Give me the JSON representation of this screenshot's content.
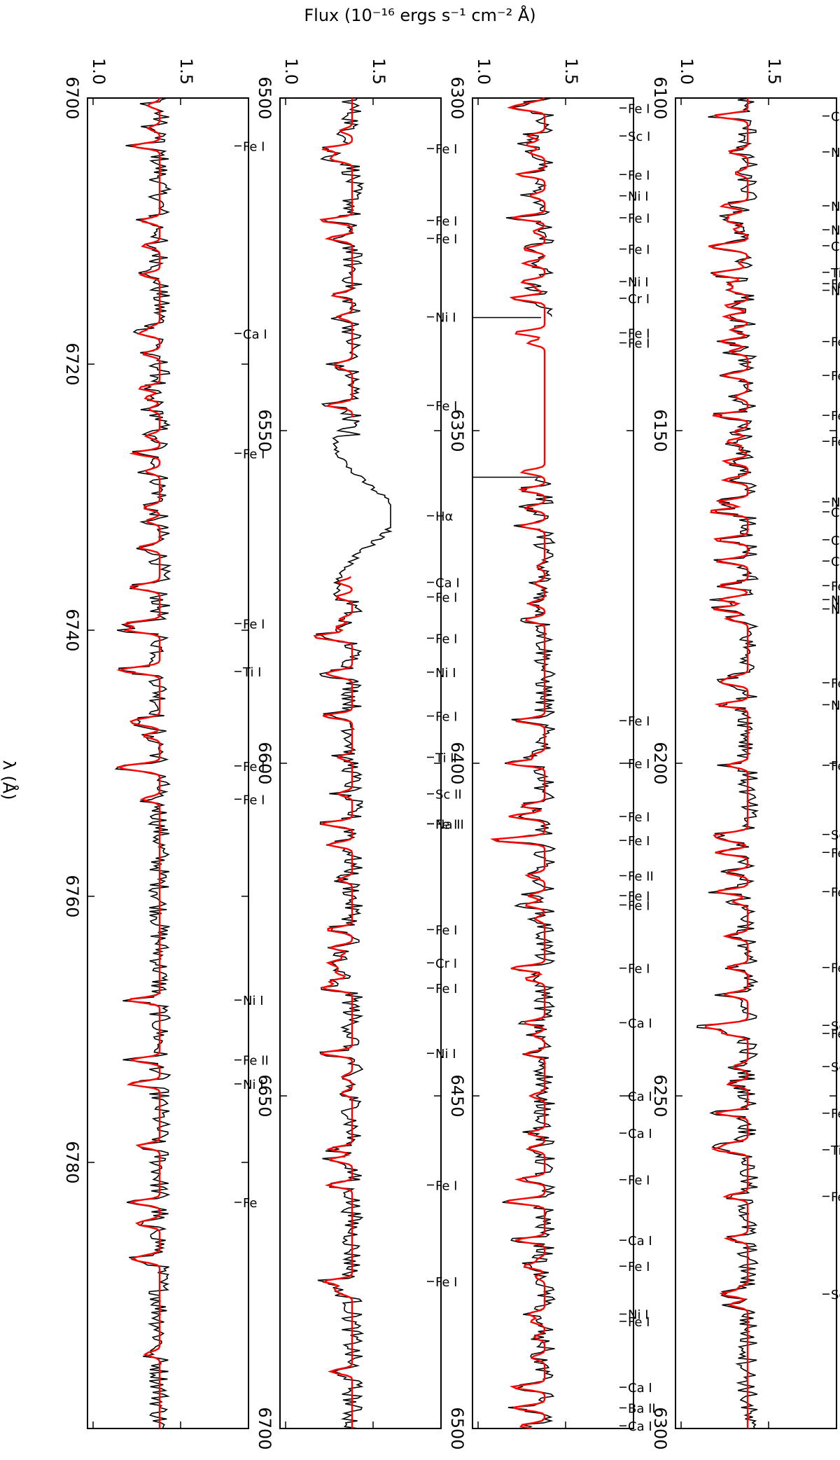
{
  "figure": {
    "ylabel_top": "Flux (10⁻¹⁶ ergs s⁻¹ cm⁻² Å)",
    "xlabel_side": "λ (Å)"
  },
  "chart_data": [
    {
      "type": "line",
      "panel": 1,
      "xlim": [
        6700,
        6800
      ],
      "ylim": [
        1.0,
        1.5
      ],
      "xticks": [
        "6700",
        "6720",
        "6740",
        "6760",
        "6780"
      ],
      "yticks": [
        "1.0",
        "1.5"
      ],
      "series": [
        {
          "name": "observed",
          "color": "#000000"
        },
        {
          "name": "model",
          "color": "#ff0000"
        }
      ],
      "lines": [
        {
          "w": 6703.6,
          "label": "Fe I"
        },
        {
          "w": 6717.7,
          "label": "Ca I"
        },
        {
          "w": 6726.7,
          "label": "Fe I"
        },
        {
          "w": 6739.5,
          "label": "Fe I"
        },
        {
          "w": 6743.1,
          "label": "Ti I"
        },
        {
          "w": 6750.2,
          "label": "Fe I"
        },
        {
          "w": 6752.7,
          "label": "Fe I"
        },
        {
          "w": 6767.8,
          "label": "Ni I"
        },
        {
          "w": 6772.3,
          "label": "Fe II"
        },
        {
          "w": 6774.1,
          "label": "Ni I"
        },
        {
          "w": 6783.0,
          "label": "Fe"
        }
      ]
    },
    {
      "type": "line",
      "panel": 2,
      "xlim": [
        6500,
        6700
      ],
      "ylim": [
        1.0,
        1.5
      ],
      "xticks": [
        "6500",
        "6550",
        "6600",
        "6650",
        "6700"
      ],
      "yticks": [
        "1.0",
        "1.5"
      ],
      "series": [
        {
          "name": "observed",
          "color": "#000000"
        },
        {
          "name": "model",
          "color": "#ff0000"
        }
      ],
      "lines": [
        {
          "w": 6507.6,
          "label": "Fe I"
        },
        {
          "w": 6518.4,
          "label": "Fe I"
        },
        {
          "w": 6521.1,
          "label": "Fe I"
        },
        {
          "w": 6532.9,
          "label": "Ni I"
        },
        {
          "w": 6546.2,
          "label": "Fe I"
        },
        {
          "w": 6562.8,
          "label": "Hα"
        },
        {
          "w": 6572.8,
          "label": "Ca I"
        },
        {
          "w": 6575.0,
          "label": "Fe I"
        },
        {
          "w": 6581.2,
          "label": "Fe I"
        },
        {
          "w": 6586.3,
          "label": "Ni I"
        },
        {
          "w": 6592.9,
          "label": "Fe I"
        },
        {
          "w": 6599.1,
          "label": "Ti I"
        },
        {
          "w": 6604.6,
          "label": "Sc II"
        },
        {
          "w": 6609.1,
          "label": "Na II"
        },
        {
          "w": 6609.1,
          "label": "Fe I"
        },
        {
          "w": 6625.0,
          "label": "Fe I"
        },
        {
          "w": 6630.0,
          "label": "Cr I"
        },
        {
          "w": 6633.8,
          "label": "Fe I"
        },
        {
          "w": 6643.6,
          "label": "Ni I"
        },
        {
          "w": 6663.4,
          "label": "Fe I"
        },
        {
          "w": 6677.9,
          "label": "Fe I"
        }
      ]
    },
    {
      "type": "line",
      "panel": 3,
      "xlim": [
        6300,
        6500
      ],
      "ylim": [
        1.0,
        1.5
      ],
      "xticks": [
        "6300",
        "6350",
        "6400",
        "6450",
        "6500"
      ],
      "yticks": [
        "1.0",
        "1.5"
      ],
      "series": [
        {
          "name": "observed",
          "color": "#000000"
        },
        {
          "name": "model",
          "color": "#ff0000"
        }
      ],
      "lines": [
        {
          "w": 6301.5,
          "label": "Fe I"
        },
        {
          "w": 6305.7,
          "label": "Sc I"
        },
        {
          "w": 6311.5,
          "label": "Fe I"
        },
        {
          "w": 6314.7,
          "label": "Ni I"
        },
        {
          "w": 6318.0,
          "label": "Fe I"
        },
        {
          "w": 6322.7,
          "label": "Fe I"
        },
        {
          "w": 6327.6,
          "label": "Ni I"
        },
        {
          "w": 6330.1,
          "label": "Cr I"
        },
        {
          "w": 6335.3,
          "label": "Fe I"
        },
        {
          "w": 6336.8,
          "label": "Fe I"
        },
        {
          "w": 6393.6,
          "label": "Fe I"
        },
        {
          "w": 6400.0,
          "label": "Fe I"
        },
        {
          "w": 6408.0,
          "label": "Fe I"
        },
        {
          "w": 6411.6,
          "label": "Fe I"
        },
        {
          "w": 6416.9,
          "label": "Fe II"
        },
        {
          "w": 6419.9,
          "label": "Fe I"
        },
        {
          "w": 6421.3,
          "label": "Fe I"
        },
        {
          "w": 6430.8,
          "label": "Fe I"
        },
        {
          "w": 6439.0,
          "label": "Ca I"
        },
        {
          "w": 6450.0,
          "label": "Ca I"
        },
        {
          "w": 6455.6,
          "label": "Ca I"
        },
        {
          "w": 6462.6,
          "label": "Fe I"
        },
        {
          "w": 6471.7,
          "label": "Ca I"
        },
        {
          "w": 6475.6,
          "label": "Fe I"
        },
        {
          "w": 6482.8,
          "label": "Ni I"
        },
        {
          "w": 6483.9,
          "label": "Fe I"
        },
        {
          "w": 6493.8,
          "label": "Ca I"
        },
        {
          "w": 6496.9,
          "label": "Ba II"
        },
        {
          "w": 6499.6,
          "label": "Ca I"
        }
      ]
    },
    {
      "type": "line",
      "panel": 4,
      "xlim": [
        6100,
        6300
      ],
      "ylim": [
        1.0,
        1.5
      ],
      "xticks": [
        "6100",
        "6150",
        "6200",
        "6250",
        "6300"
      ],
      "yticks": [
        "1.0",
        "1.5"
      ],
      "series": [
        {
          "name": "observed",
          "color": "#000000"
        },
        {
          "name": "model",
          "color": "#ff0000"
        }
      ],
      "lines": [
        {
          "w": 6102.7,
          "label": "Ca I"
        },
        {
          "w": 6108.1,
          "label": "Ni I"
        },
        {
          "w": 6116.2,
          "label": "Ni I"
        },
        {
          "w": 6119.8,
          "label": "Ni I"
        },
        {
          "w": 6122.2,
          "label": "Ca I"
        },
        {
          "w": 6126.2,
          "label": "Ti I"
        },
        {
          "w": 6127.9,
          "label": "Fe I"
        },
        {
          "w": 6128.9,
          "label": "Ni I"
        },
        {
          "w": 6136.6,
          "label": "Fe I"
        },
        {
          "w": 6141.7,
          "label": "Fe I"
        },
        {
          "w": 6147.7,
          "label": "Fe I"
        },
        {
          "w": 6151.6,
          "label": "Fe I"
        },
        {
          "w": 6160.7,
          "label": "Na I"
        },
        {
          "w": 6162.2,
          "label": "Ca I"
        },
        {
          "w": 6166.4,
          "label": "Ca I"
        },
        {
          "w": 6169.6,
          "label": "Ca I"
        },
        {
          "w": 6173.3,
          "label": "Fe I"
        },
        {
          "w": 6175.4,
          "label": "Ni I"
        },
        {
          "w": 6176.8,
          "label": "Ni I"
        },
        {
          "w": 6187.9,
          "label": "Fe I"
        },
        {
          "w": 6191.2,
          "label": "Ni I"
        },
        {
          "w": 6200.3,
          "label": "Fe I"
        },
        {
          "w": 6210.7,
          "label": "Sc I"
        },
        {
          "w": 6213.4,
          "label": "Fe I"
        },
        {
          "w": 6219.3,
          "label": "Fe I"
        },
        {
          "w": 6230.7,
          "label": "Fe I"
        },
        {
          "w": 6239.4,
          "label": "Sc I"
        },
        {
          "w": 6240.6,
          "label": "Fe I"
        },
        {
          "w": 6245.6,
          "label": "Sc II"
        },
        {
          "w": 6252.6,
          "label": "Fe I"
        },
        {
          "w": 6258.1,
          "label": "Ti I"
        },
        {
          "w": 6265.1,
          "label": "Fe I"
        },
        {
          "w": 6279.8,
          "label": "Sc II"
        }
      ]
    }
  ]
}
